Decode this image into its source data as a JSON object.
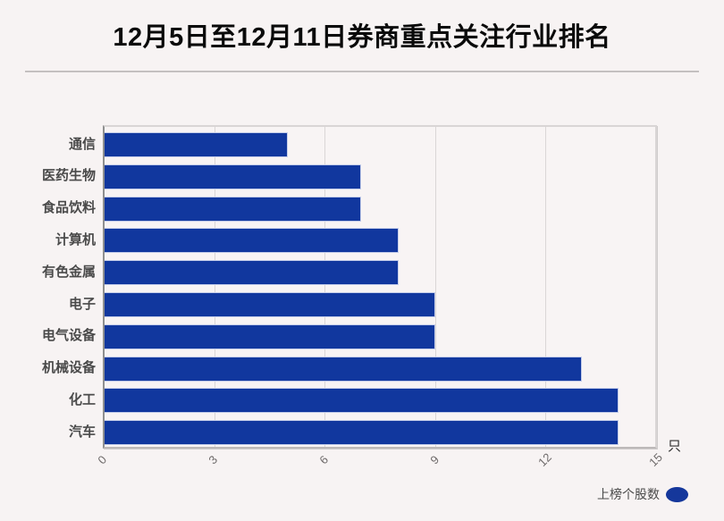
{
  "header": {
    "title": "12月5日至12月11日券商重点关注行业排名"
  },
  "chart_data": {
    "type": "bar",
    "orientation": "horizontal",
    "title": "12月5日至12月11日券商重点关注行业排名",
    "categories": [
      "通信",
      "医药生物",
      "食品饮料",
      "计算机",
      "有色金属",
      "电子",
      "电气设备",
      "机械设备",
      "化工",
      "汽车"
    ],
    "values": [
      5,
      7,
      7,
      8,
      8,
      9,
      9,
      13,
      14,
      14
    ],
    "series_name": "上榜个股数",
    "xlim": [
      0,
      15
    ],
    "x_ticks": [
      "0",
      "3",
      "6",
      "9",
      "12",
      "15"
    ],
    "grid": true,
    "unit_label": "只",
    "legend": {
      "label": "上榜个股数",
      "position": "bottom-right"
    },
    "colors": {
      "bar": "#11379e",
      "background": "#f7f3f3",
      "category_text": "#4a4a4a",
      "tick_text": "#6e6a6a",
      "title_text": "#0a0a0a"
    }
  }
}
